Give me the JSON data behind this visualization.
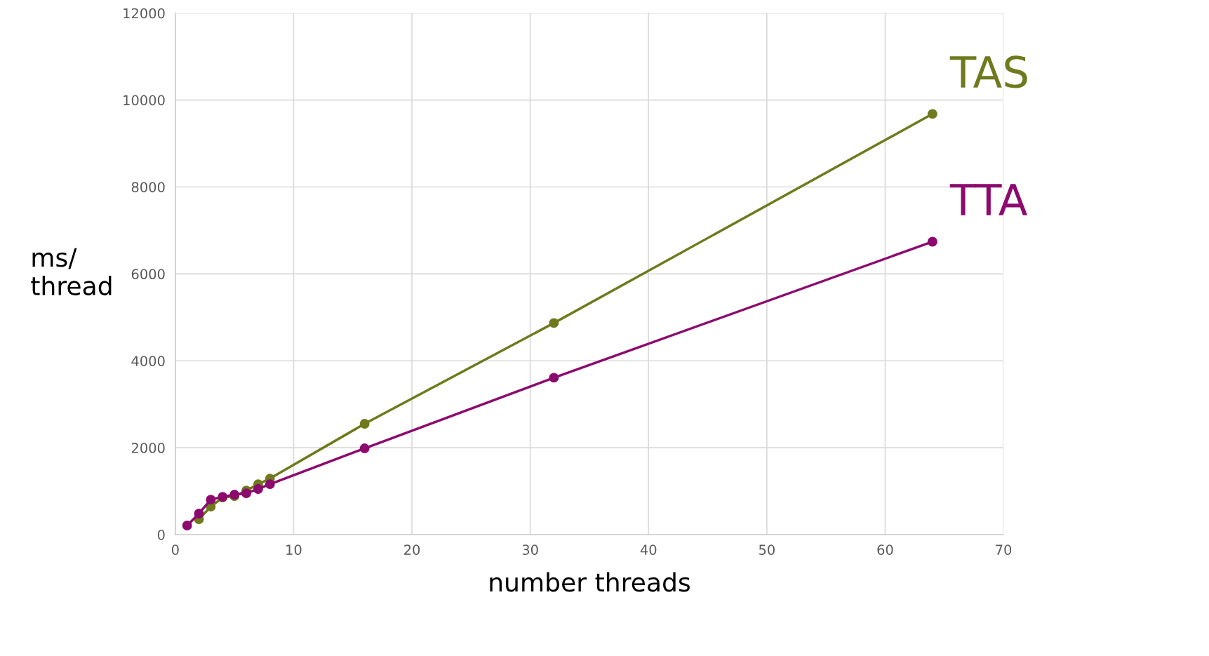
{
  "chart_data": {
    "type": "line",
    "xlabel": "number threads",
    "ylabel": "ms/\nthread",
    "x": [
      1,
      2,
      3,
      4,
      5,
      6,
      7,
      8,
      16,
      32,
      64
    ],
    "series": [
      {
        "name": "TAS",
        "color": "#6e7a1c",
        "values": [
          null,
          355,
          645,
          855,
          885,
          1015,
          1160,
          1290,
          2550,
          4870,
          9680
        ]
      },
      {
        "name": "TTA",
        "color": "#8c0a6e",
        "values": [
          210,
          485,
          805,
          870,
          920,
          950,
          1050,
          1160,
          1985,
          3610,
          6740
        ]
      }
    ],
    "xlim": [
      0,
      70
    ],
    "xticks": [
      0,
      10,
      20,
      30,
      40,
      50,
      60,
      70
    ],
    "ylim": [
      0,
      12000
    ],
    "yticks": [
      0,
      2000,
      4000,
      6000,
      8000,
      10000,
      12000
    ],
    "grid": true,
    "marker": "circle",
    "line_style": "solid"
  }
}
